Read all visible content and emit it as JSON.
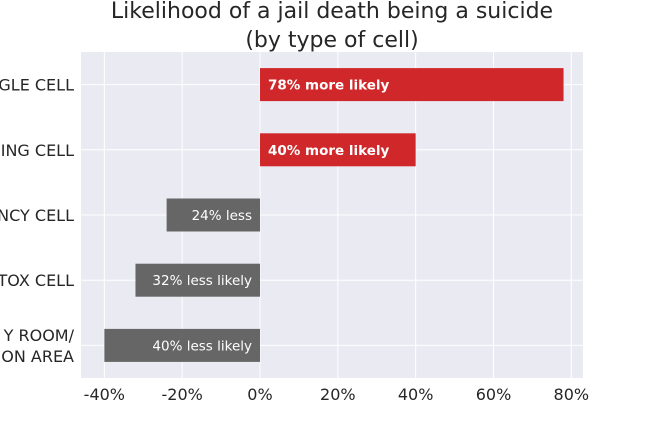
{
  "chart_data": {
    "type": "bar",
    "orientation": "horizontal",
    "title_lines": [
      "Likelihood of a jail death being a suicide",
      "(by type of cell)"
    ],
    "category_lines": [
      [
        "GLE CELL"
      ],
      [
        "ING CELL"
      ],
      [
        "NCY CELL"
      ],
      [
        "TOX CELL"
      ],
      [
        "Y ROOM/",
        "ON AREA"
      ]
    ],
    "values": [
      78,
      40,
      -24,
      -32,
      -40
    ],
    "bar_labels": [
      "78% more likely",
      "40% more likely",
      "24% less",
      "32% less likely",
      "40% less likely"
    ],
    "xlim": [
      -46,
      83
    ],
    "xticks": [
      -40,
      -20,
      0,
      20,
      40,
      60,
      80
    ],
    "xtick_labels": [
      "-40%",
      "-20%",
      "0%",
      "20%",
      "40%",
      "60%",
      "80%"
    ],
    "grid": true,
    "colors": {
      "positive": "#d0282a",
      "negative": "#666666",
      "plot_background": "#eaeaf2",
      "grid": "#ffffff"
    }
  }
}
